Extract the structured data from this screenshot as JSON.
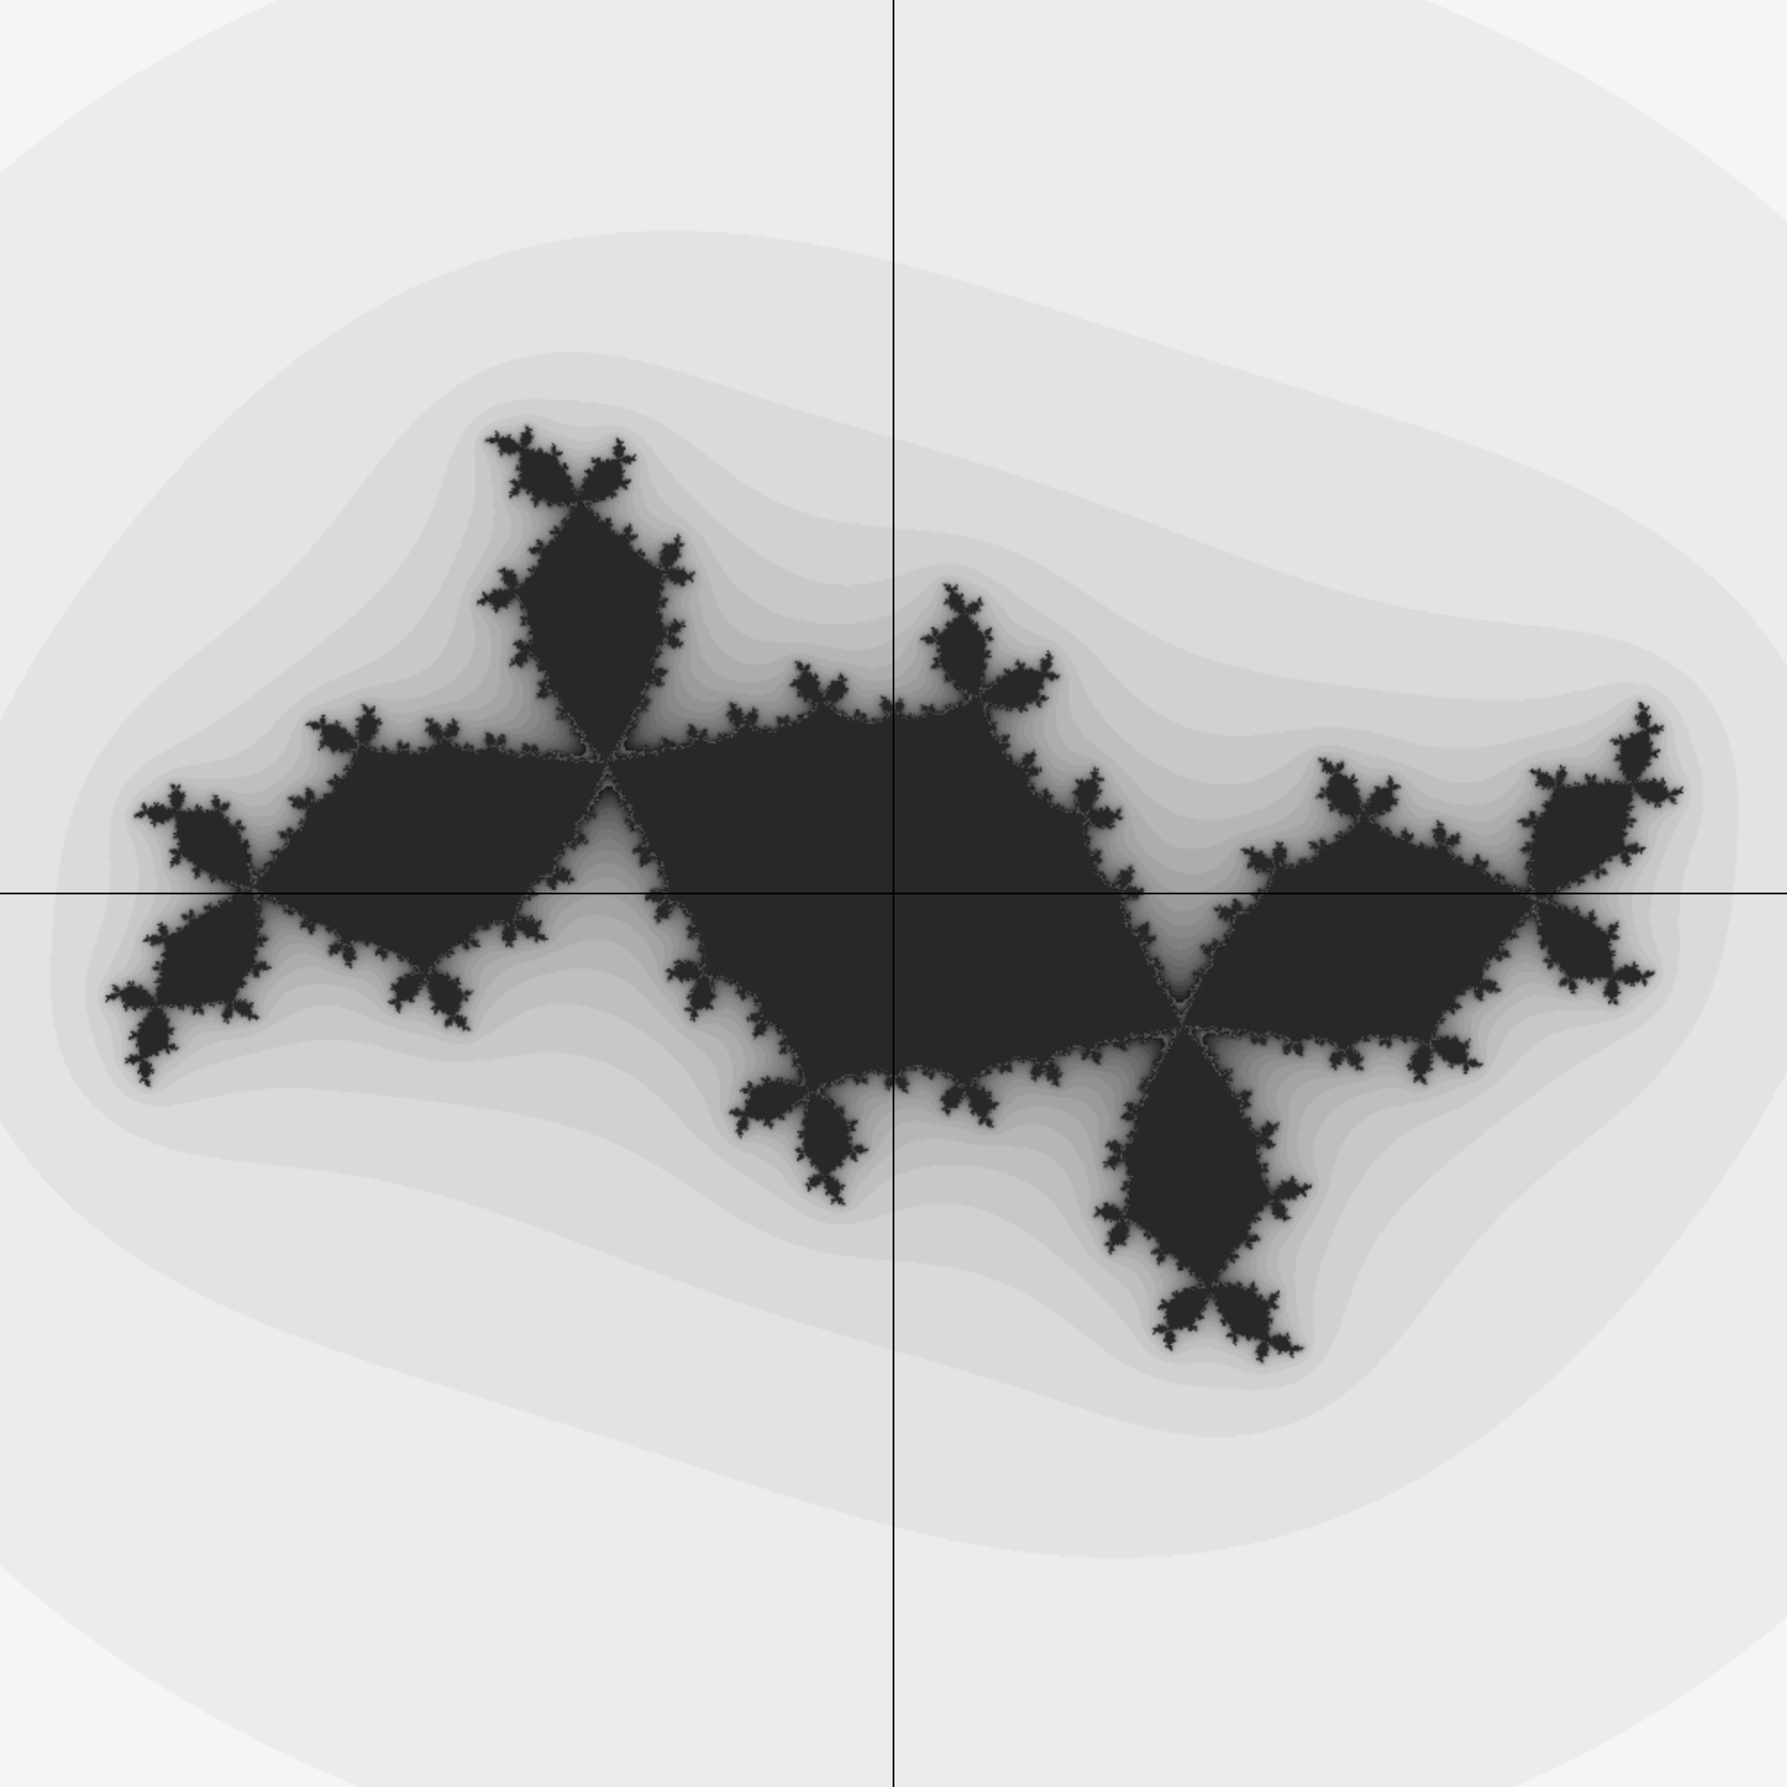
{
  "image": {
    "subject": "julia-set-fractal",
    "colors": {
      "background": "#fefefe",
      "axis": "#000000",
      "set_dark": "#111111",
      "escape_light": "#f2f2f2"
    }
  },
  "axes": {
    "shown": true,
    "origin_at_center": true
  }
}
